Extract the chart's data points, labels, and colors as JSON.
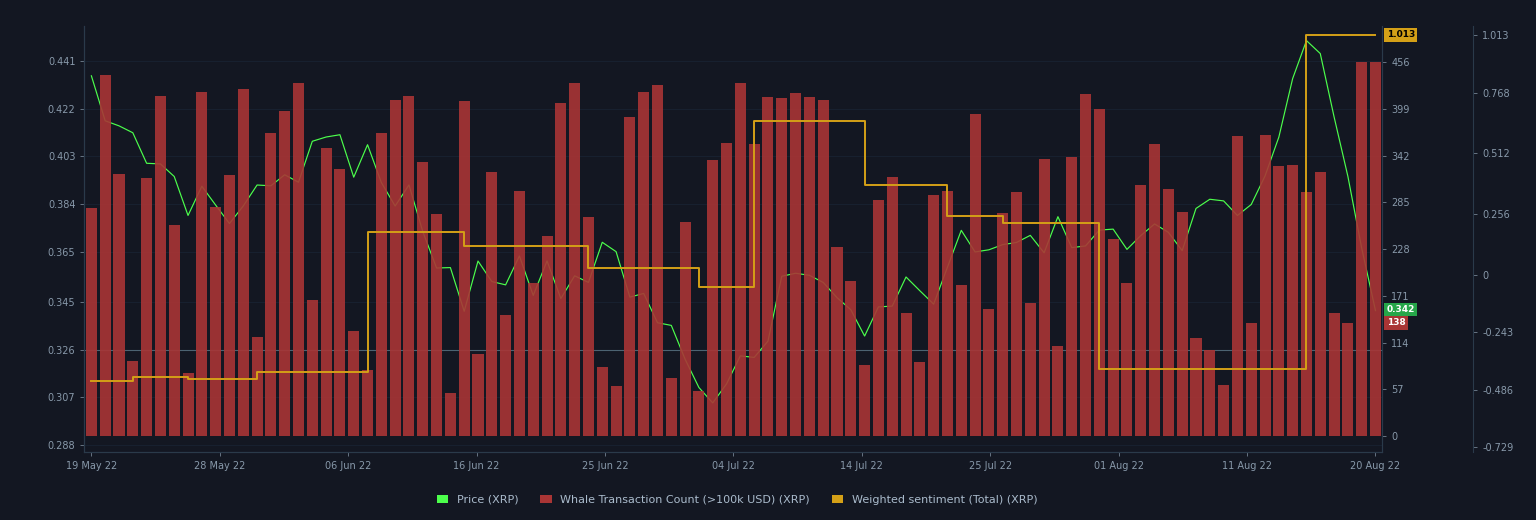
{
  "bg_color": "#131722",
  "grid_color": "#1e2535",
  "price_color": "#4cff4c",
  "whale_color": "#a93535",
  "sentiment_color": "#d4a017",
  "price_label": "Price (XRP)",
  "whale_label": "Whale Transaction Count (>100k USD) (XRP)",
  "sentiment_label": "Weighted sentiment (Total) (XRP)",
  "x_labels": [
    "19 May 22",
    "28 May 22",
    "06 Jun 22",
    "16 Jun 22",
    "25 Jun 22",
    "04 Jul 22",
    "14 Jul 22",
    "25 Jul 22",
    "01 Aug 22",
    "11 Aug 22",
    "20 Aug 22"
  ],
  "left_yticks": [
    0.288,
    0.307,
    0.326,
    0.345,
    0.365,
    0.384,
    0.403,
    0.422,
    0.441
  ],
  "right_yticks_whale": [
    0,
    57,
    114,
    171,
    228,
    285,
    342,
    399,
    456
  ],
  "right_yticks_sent": [
    -0.729,
    -0.486,
    -0.243,
    0,
    0.256,
    0.512,
    0.768,
    1.013
  ],
  "current_price": 0.342,
  "current_whale": 138,
  "sentiment_last": 1.013,
  "hline_price": 0.326,
  "price_ylim": [
    0.285,
    0.455
  ],
  "whale_ylim": [
    -20,
    500
  ],
  "sent_ylim": [
    -0.75,
    1.05
  ]
}
